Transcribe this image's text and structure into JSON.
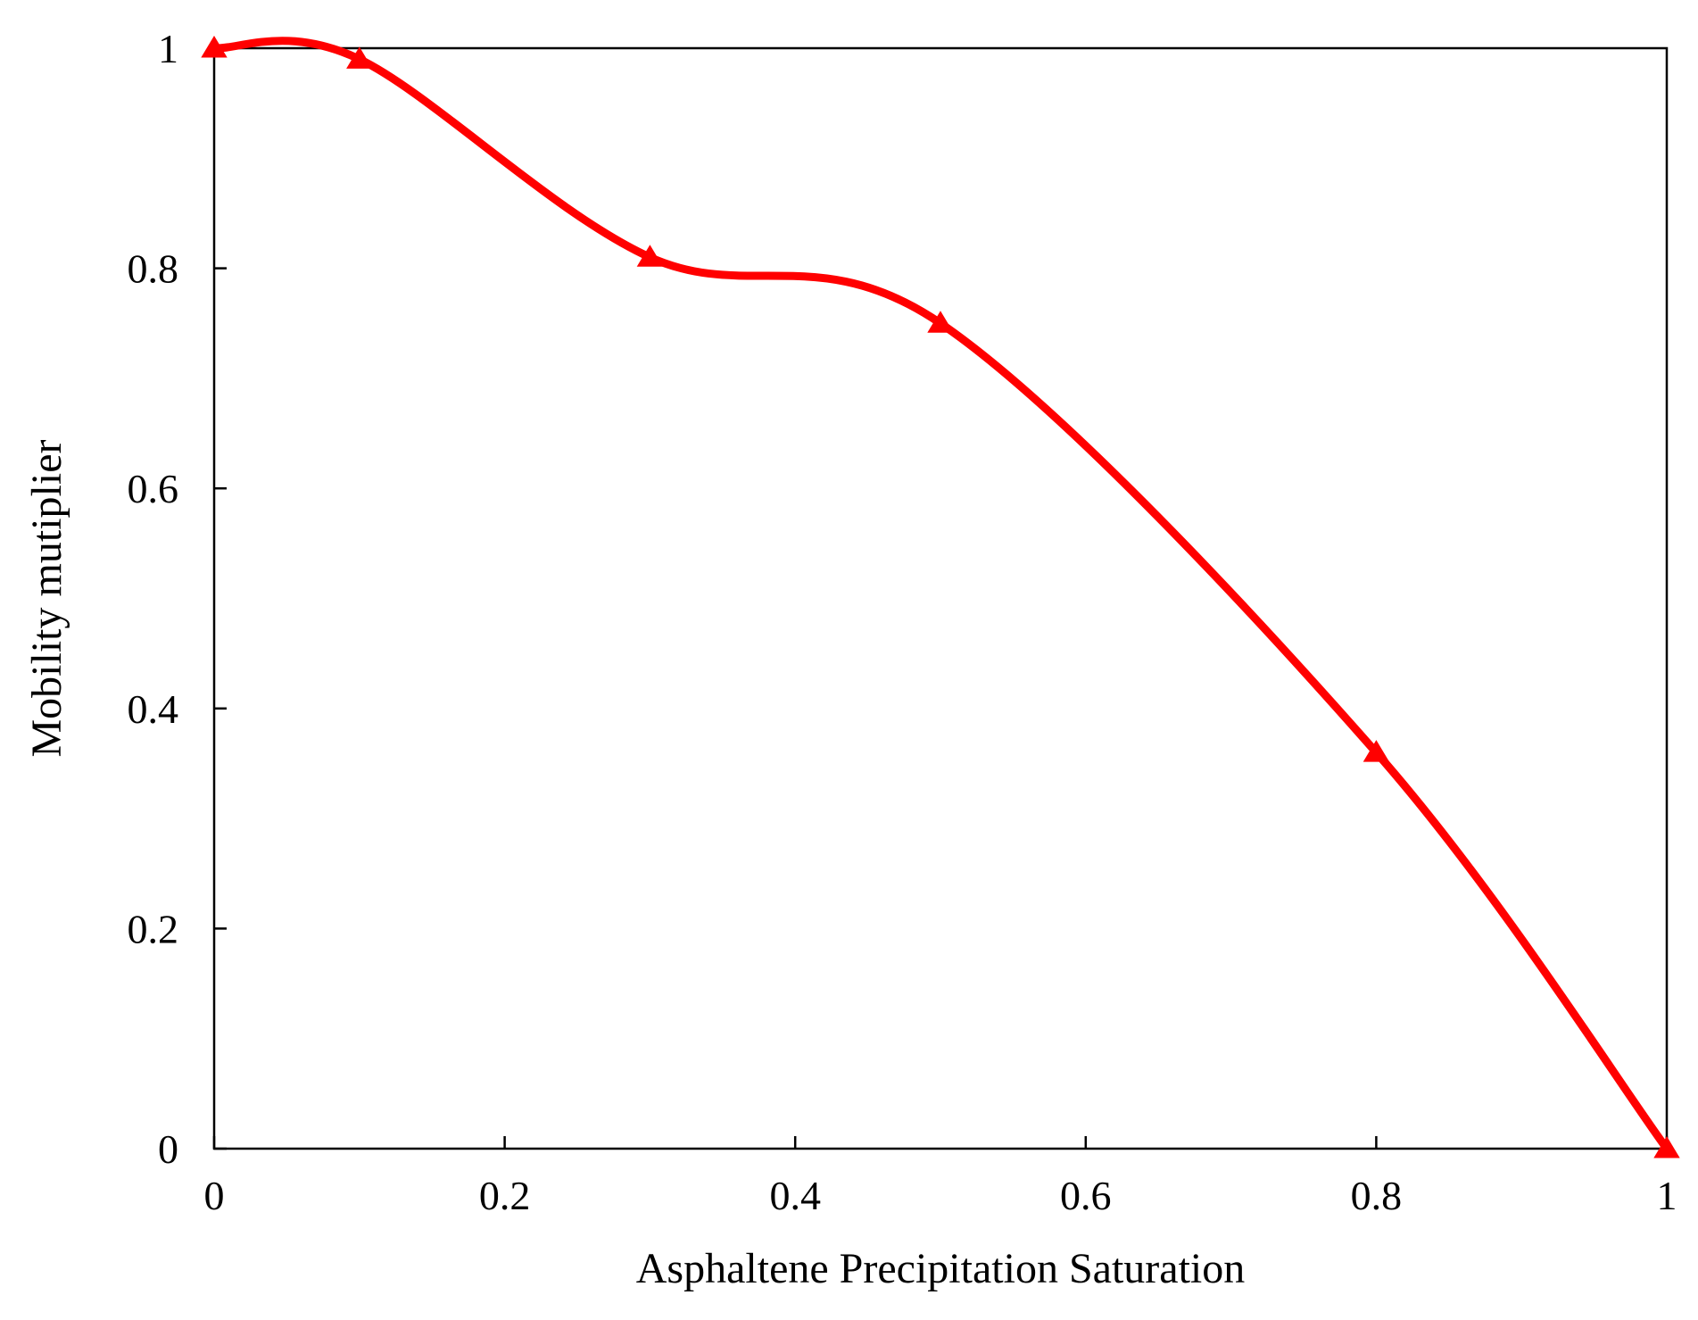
{
  "chart_data": {
    "type": "line",
    "title": "",
    "xlabel": "Asphaltene Precipitation Saturation",
    "ylabel": "Mobility mutiplier",
    "xlim": [
      0,
      1
    ],
    "ylim": [
      0,
      1
    ],
    "x_ticks": [
      0,
      0.2,
      0.4,
      0.6,
      0.8,
      1
    ],
    "y_ticks": [
      0,
      0.2,
      0.4,
      0.6,
      0.8,
      1
    ],
    "x_tick_labels": [
      "0",
      "0.2",
      "0.4",
      "0.6",
      "0.8",
      "1"
    ],
    "y_tick_labels": [
      "0",
      "0.2",
      "0.4",
      "0.6",
      "0.8",
      "1"
    ],
    "grid": false,
    "legend": "none",
    "series": [
      {
        "x": [
          0,
          0.1,
          0.3,
          0.5,
          0.8,
          1
        ],
        "y": [
          1,
          0.99,
          0.81,
          0.75,
          0.36,
          0
        ],
        "color": "#ff0000",
        "marker": "triangle",
        "line": "smooth"
      }
    ]
  }
}
